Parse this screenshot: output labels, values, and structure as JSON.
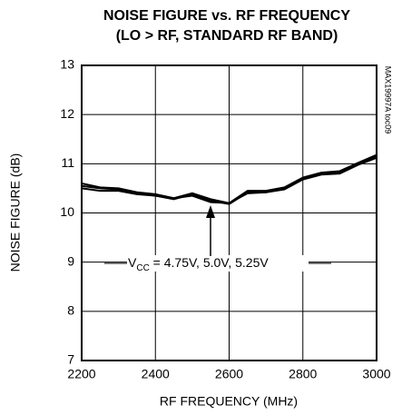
{
  "chart_data": {
    "type": "line",
    "title": [
      "NOISE FIGURE vs. RF FREQUENCY",
      "(LO > RF, STANDARD RF BAND)"
    ],
    "x_label": "RF FREQUENCY (MHz)",
    "y_label": "NOISE FIGURE (dB)",
    "side_note": "MAX19997A toc09",
    "annotation": {
      "prefix": "V",
      "sub": "CC",
      "text": " = 4.75V, 5.0V, 5.25V"
    },
    "x": [
      2200,
      2250,
      2300,
      2350,
      2400,
      2450,
      2500,
      2550,
      2600,
      2650,
      2700,
      2750,
      2800,
      2850,
      2900,
      2950,
      3000
    ],
    "series": [
      {
        "color": "#000000",
        "values": [
          10.55,
          10.5,
          10.48,
          10.4,
          10.35,
          10.28,
          10.38,
          10.25,
          10.18,
          10.42,
          10.42,
          10.5,
          10.7,
          10.8,
          10.82,
          11.0,
          11.15
        ]
      },
      {
        "color": "#000000",
        "values": [
          10.5,
          10.45,
          10.45,
          10.38,
          10.35,
          10.3,
          10.35,
          10.22,
          10.2,
          10.4,
          10.42,
          10.48,
          10.68,
          10.78,
          10.8,
          10.98,
          11.12
        ]
      },
      {
        "color": "#000000",
        "values": [
          10.6,
          10.52,
          10.5,
          10.42,
          10.38,
          10.3,
          10.4,
          10.28,
          10.2,
          10.45,
          10.45,
          10.52,
          10.72,
          10.82,
          10.85,
          11.02,
          11.18
        ]
      }
    ],
    "xlim": [
      2200,
      3000
    ],
    "xticks": [
      2200,
      2400,
      2600,
      2800,
      3000
    ],
    "ylim": [
      7,
      13
    ],
    "yticks": [
      7,
      8,
      9,
      10,
      11,
      12,
      13
    ],
    "grid": true
  }
}
